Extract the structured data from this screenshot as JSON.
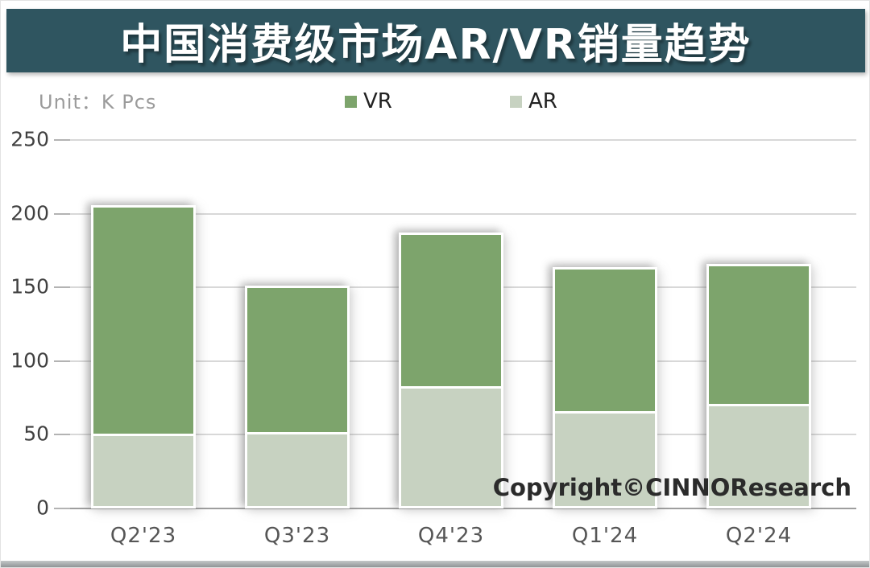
{
  "header": {
    "title": "中国消费级市场AR/VR销量趋势"
  },
  "unit_label": "Unit：K Pcs",
  "watermark": "Copyright©CINNOResearch",
  "colors": {
    "banner": "#2f5560",
    "vr": "#7da46c",
    "ar": "#c7d2c1",
    "gridline": "#d8d8d8",
    "baseline": "#9e9e9e"
  },
  "chart_data": {
    "type": "bar",
    "stacked": true,
    "title": "中国消费级市场AR/VR销量趋势",
    "unit": "K Pcs",
    "categories": [
      "Q2'23",
      "Q3'23",
      "Q4'23",
      "Q1'24",
      "Q2'24"
    ],
    "series": [
      {
        "name": "VR",
        "color": "#7da46c",
        "values": [
          155,
          99,
          104,
          98,
          95
        ]
      },
      {
        "name": "AR",
        "color": "#c7d2c1",
        "values": [
          51,
          52,
          83,
          66,
          71
        ]
      }
    ],
    "totals": [
      206,
      151,
      187,
      164,
      166
    ],
    "ylim": [
      0,
      250
    ],
    "yticks": [
      0,
      50,
      100,
      150,
      200,
      250
    ],
    "grid": true,
    "legend_position": "top",
    "legend_order": [
      "VR",
      "AR"
    ]
  }
}
